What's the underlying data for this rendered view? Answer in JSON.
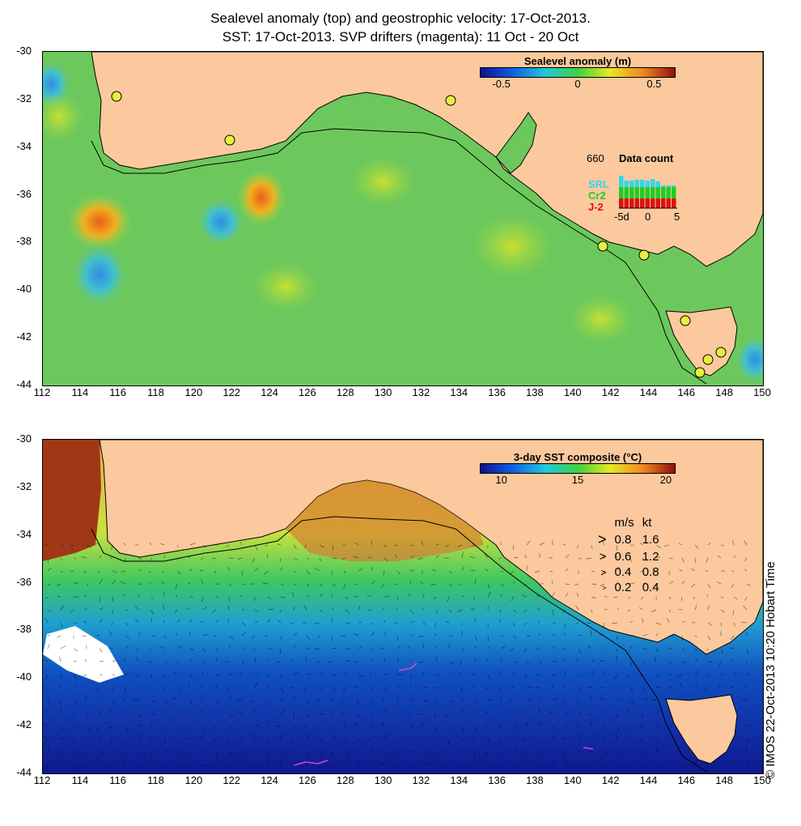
{
  "titles": {
    "line1": "Sealevel anomaly (top) and geostrophic velocity: 17-Oct-2013.",
    "line2": "SST: 17-Oct-2013. SVP drifters (magenta): 11 Oct - 20 Oct"
  },
  "axes": {
    "x_ticks": [
      "112",
      "114",
      "116",
      "118",
      "120",
      "122",
      "124",
      "126",
      "128",
      "130",
      "132",
      "134",
      "136",
      "138",
      "140",
      "142",
      "144",
      "146",
      "148",
      "150"
    ],
    "y_ticks": [
      "-30",
      "-32",
      "-34",
      "-36",
      "-38",
      "-40",
      "-42",
      "-44"
    ]
  },
  "top_panel": {
    "colorbar_title": "Sealevel anomaly (m)",
    "colorbar_ticks": [
      "-0.5",
      "0",
      "0.5"
    ],
    "data_count": {
      "title": "Data count",
      "max_label": "660",
      "series": [
        "SRL",
        "Cr2",
        "J-2"
      ],
      "series_colors": [
        "#33d6e6",
        "#22cc22",
        "#dd1111"
      ],
      "x_ticks": [
        "-5d",
        "0",
        "5"
      ]
    }
  },
  "bottom_panel": {
    "colorbar_title": "3-day SST composite (°C)",
    "colorbar_ticks": [
      "10",
      "15",
      "20"
    ],
    "speed_legend": {
      "headers": [
        "m/s",
        "kt"
      ],
      "rows": [
        [
          "0.8",
          "1.6"
        ],
        [
          "0.6",
          "1.2"
        ],
        [
          "0.4",
          "0.8"
        ],
        [
          "0.2",
          "0.4"
        ]
      ]
    }
  },
  "copyright": "© IMOS 22-Oct-2013 10:20 Hobart Time",
  "colors": {
    "land": "#fbc99d",
    "drifter": "#e040e0"
  }
}
